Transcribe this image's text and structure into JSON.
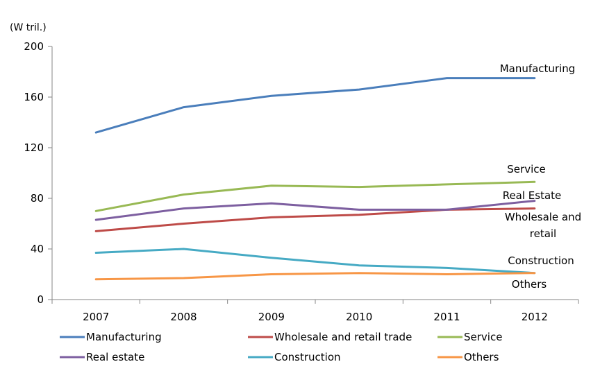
{
  "chart_data": {
    "type": "line",
    "unit_label": "(W tril.)",
    "categories": [
      "2007",
      "2008",
      "2009",
      "2010",
      "2011",
      "2012"
    ],
    "ylim": [
      0,
      200
    ],
    "yticks": [
      0,
      40,
      80,
      120,
      160,
      200
    ],
    "grid": false,
    "legend_position": "bottom",
    "series": [
      {
        "name": "Manufacturing",
        "legend": "Manufacturing",
        "label_lines": [
          "Manufacturing"
        ],
        "color": "#4a7ebb",
        "values": [
          132,
          152,
          161,
          166,
          175,
          175
        ]
      },
      {
        "name": "Wholesale and retail trade",
        "legend": "Wholesale and retail trade",
        "label_lines": [
          "Wholesale and",
          "retail"
        ],
        "color": "#be4b48",
        "values": [
          54,
          60,
          65,
          67,
          71,
          72
        ]
      },
      {
        "name": "Service",
        "legend": "Service",
        "label_lines": [
          "Service"
        ],
        "color": "#98b954",
        "values": [
          70,
          83,
          90,
          89,
          91,
          93
        ]
      },
      {
        "name": "Real estate",
        "legend": "Real estate",
        "label_lines": [
          "Real Estate"
        ],
        "color": "#7d5fa0",
        "values": [
          63,
          72,
          76,
          71,
          71,
          78
        ]
      },
      {
        "name": "Construction",
        "legend": "Construction",
        "label_lines": [
          "Construction"
        ],
        "color": "#46aac4",
        "values": [
          37,
          40,
          33,
          27,
          25,
          21
        ]
      },
      {
        "name": "Others",
        "legend": "Others",
        "label_lines": [
          "Others"
        ],
        "color": "#f79646",
        "values": [
          16,
          17,
          20,
          21,
          20,
          21
        ]
      }
    ]
  }
}
